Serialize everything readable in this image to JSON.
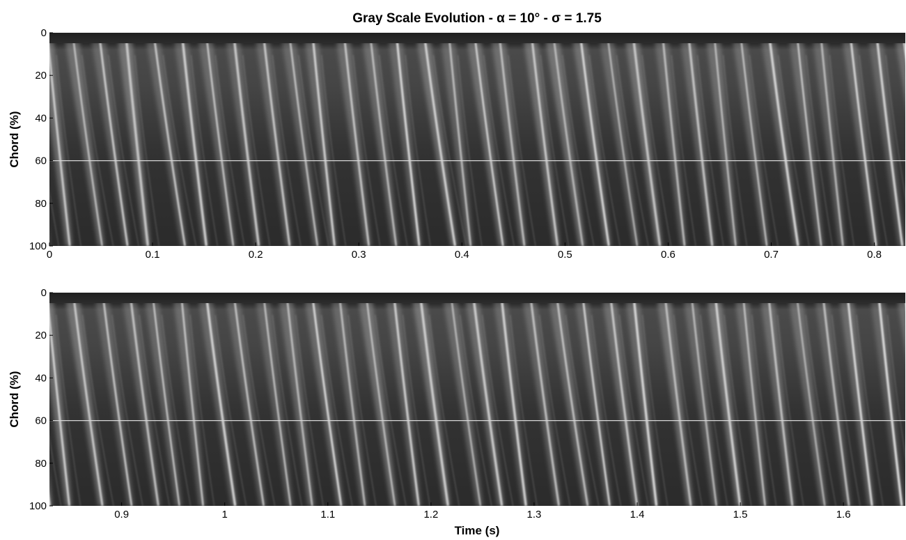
{
  "chart_data": [
    {
      "type": "heatmap",
      "title": "Gray Scale Evolution - α = 10° - σ = 1.75",
      "xlabel": "",
      "ylabel": "Chord (%)",
      "xlim": [
        0,
        0.83
      ],
      "ylim": [
        0,
        100
      ],
      "y_inverted": true,
      "xticks": [
        "0",
        "0.1",
        "0.2",
        "0.3",
        "0.4",
        "0.5",
        "0.6",
        "0.7",
        "0.8"
      ],
      "xtick_values": [
        0,
        0.1,
        0.2,
        0.3,
        0.4,
        0.5,
        0.6,
        0.7,
        0.8
      ],
      "yticks": [
        "0",
        "20",
        "40",
        "60",
        "80",
        "100"
      ],
      "ytick_values": [
        0,
        20,
        40,
        60,
        80,
        100
      ],
      "reference_line_chord": 60,
      "colormap": "gray"
    },
    {
      "type": "heatmap",
      "title": "",
      "xlabel": "Time (s)",
      "ylabel": "Chord (%)",
      "xlim": [
        0.83,
        1.66
      ],
      "ylim": [
        0,
        100
      ],
      "y_inverted": true,
      "xticks": [
        "0.9",
        "1",
        "1.1",
        "1.2",
        "1.3",
        "1.4",
        "1.5",
        "1.6"
      ],
      "xtick_values": [
        0.9,
        1.0,
        1.1,
        1.2,
        1.3,
        1.4,
        1.5,
        1.6
      ],
      "yticks": [
        "0",
        "20",
        "40",
        "60",
        "80",
        "100"
      ],
      "ytick_values": [
        0,
        20,
        40,
        60,
        80,
        100
      ],
      "reference_line_chord": 60,
      "colormap": "gray"
    }
  ]
}
